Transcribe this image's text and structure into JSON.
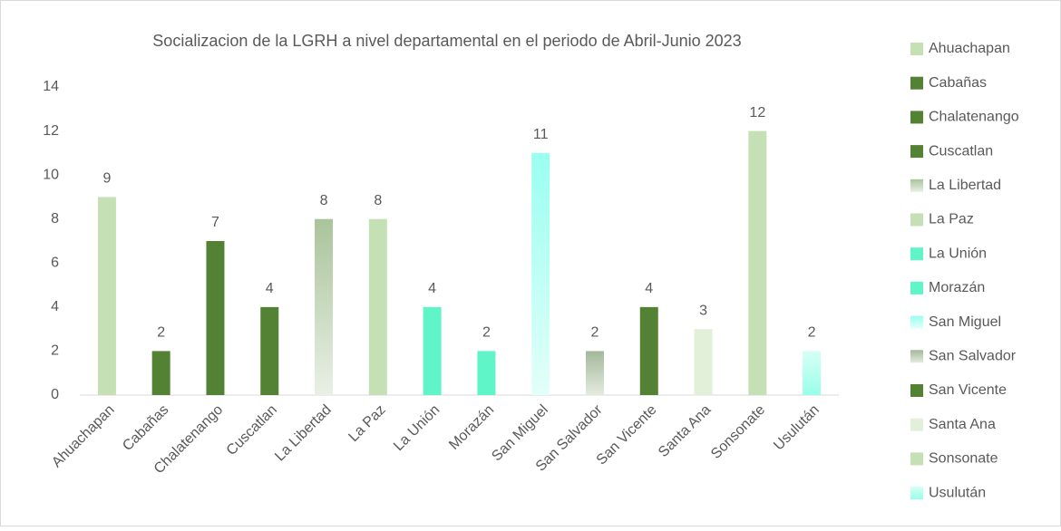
{
  "chart_data": {
    "type": "bar",
    "title": "Socializacion de la LGRH a nivel departamental en el periodo de Abril-Junio 2023",
    "categories": [
      "Ahuachapan",
      "Cabañas",
      "Chalatenango",
      "Cuscatlan",
      "La Libertad",
      "La Paz",
      "La Unión",
      "Morazán",
      "San Miguel",
      "San Salvador",
      "San Vicente",
      "Santa Ana",
      "Sonsonate",
      "Usulután"
    ],
    "values": [
      9,
      2,
      7,
      4,
      8,
      8,
      4,
      2,
      11,
      2,
      4,
      3,
      12,
      2
    ],
    "colors": [
      "#c5e0b4",
      "#548235",
      "#548235",
      "#548235",
      [
        "#a9c49a",
        "#e9f0e5"
      ],
      "#c5e0b4",
      "#5ff5c8",
      "#5ff5c8",
      [
        "#99fff0",
        "#e3fff9"
      ],
      [
        "#a3b89a",
        "#e4ebe0"
      ],
      "#548235",
      "#e2f0d9",
      "#c5e0b4",
      [
        "#d6fff6",
        "#99ffe8"
      ]
    ],
    "ylim": [
      0,
      14
    ],
    "yticks": [
      0,
      2,
      4,
      6,
      8,
      10,
      12,
      14
    ],
    "grid": false,
    "legend": "right"
  }
}
